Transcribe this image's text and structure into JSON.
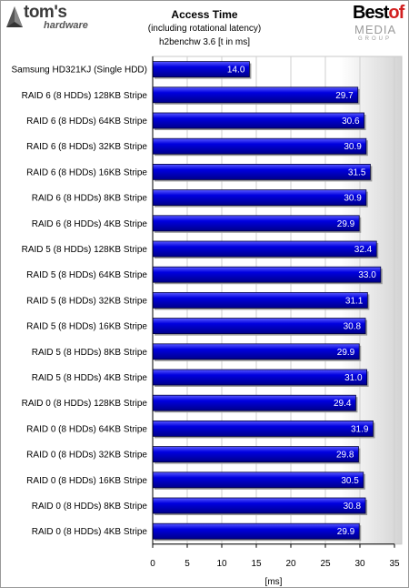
{
  "header": {
    "title": "Access Time",
    "subtitle1": "(including rotational latency)",
    "subtitle2": "h2benchw 3.6 [t in ms]"
  },
  "logos": {
    "left_main": "tom's",
    "left_sub": "hardware",
    "right_best": "Best",
    "right_of": "of",
    "right_media": "MEDIA",
    "right_group": "GROUP"
  },
  "colors": {
    "bar": "#0000d6",
    "bar_light": "#3c3cff",
    "bar_dark": "#00007a",
    "accent_red": "#d22020"
  },
  "chart_data": {
    "type": "bar",
    "orientation": "horizontal",
    "title": "Access Time",
    "subtitle": [
      "(including rotational latency)",
      "h2benchw 3.6 [t in ms]"
    ],
    "xlabel": "[ms]",
    "ylabel": "",
    "xlim": [
      0,
      35
    ],
    "xticks": [
      0,
      5,
      10,
      15,
      20,
      25,
      30,
      35
    ],
    "grid": true,
    "categories": [
      "Samsung HD321KJ (Single HDD)",
      "RAID 6 (8 HDDs) 128KB Stripe",
      "RAID 6 (8 HDDs) 64KB Stripe",
      "RAID 6 (8 HDDs) 32KB Stripe",
      "RAID 6 (8 HDDs) 16KB Stripe",
      "RAID 6 (8 HDDs) 8KB Stripe",
      "RAID 6 (8 HDDs) 4KB Stripe",
      "RAID 5 (8 HDDs) 128KB Stripe",
      "RAID 5 (8 HDDs) 64KB Stripe",
      "RAID 5 (8 HDDs) 32KB Stripe",
      "RAID 5 (8 HDDs) 16KB Stripe",
      "RAID 5 (8 HDDs) 8KB Stripe",
      "RAID 5 (8 HDDs) 4KB Stripe",
      "RAID 0 (8 HDDs) 128KB Stripe",
      "RAID 0 (8 HDDs) 64KB Stripe",
      "RAID 0 (8 HDDs) 32KB Stripe",
      "RAID 0 (8 HDDs) 16KB Stripe",
      "RAID 0 (8 HDDs) 8KB Stripe",
      "RAID 0 (8 HDDs) 4KB Stripe"
    ],
    "values": [
      14.0,
      29.7,
      30.6,
      30.9,
      31.5,
      30.9,
      29.9,
      32.4,
      33.0,
      31.1,
      30.8,
      29.9,
      31.0,
      29.4,
      31.9,
      29.8,
      30.5,
      30.8,
      29.9
    ],
    "value_labels": [
      "14.0",
      "29.7",
      "30.6",
      "30.9",
      "31.5",
      "30.9",
      "29.9",
      "32.4",
      "33.0",
      "31.1",
      "30.8",
      "29.9",
      "31.0",
      "29.4",
      "31.9",
      "29.8",
      "30.5",
      "30.8",
      "29.9"
    ]
  }
}
